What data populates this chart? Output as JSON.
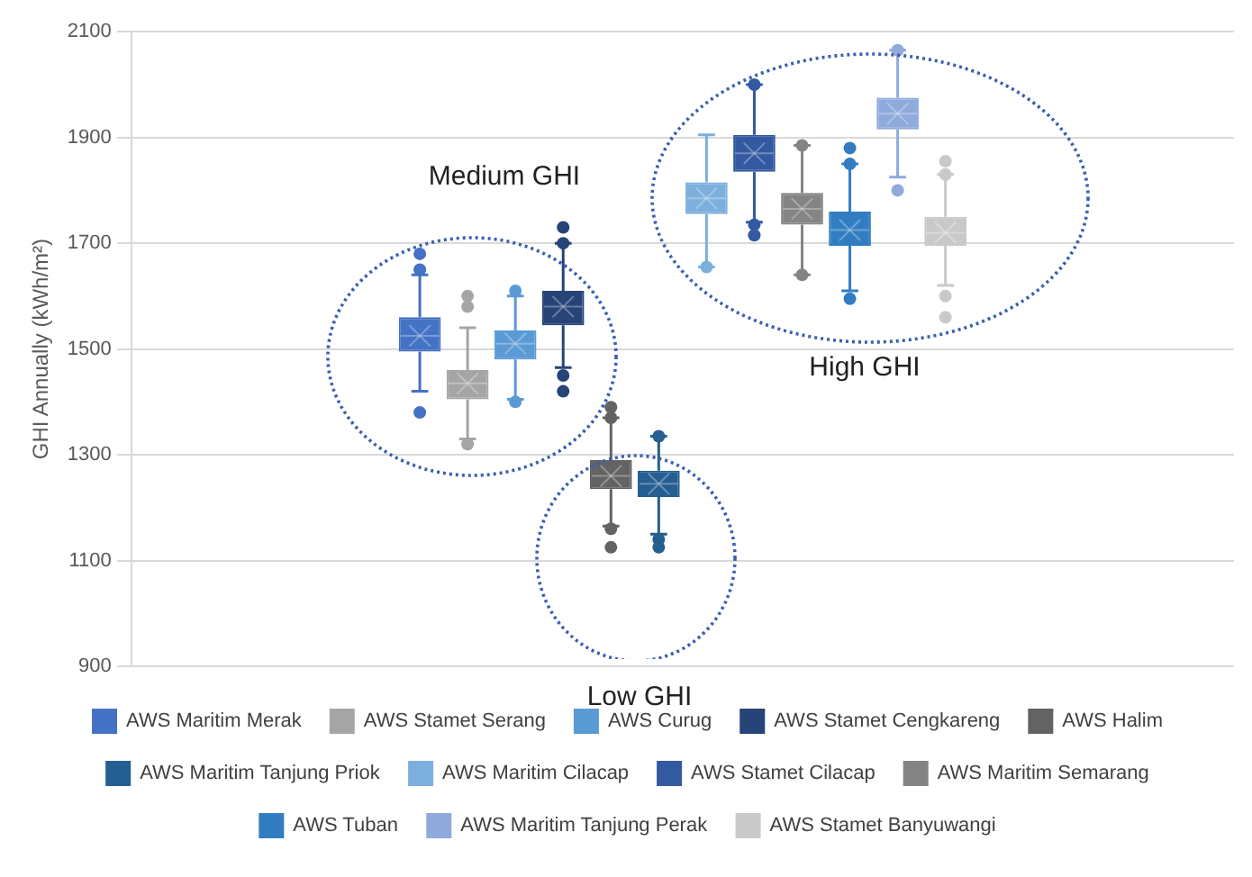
{
  "chart_data": {
    "type": "box",
    "ylabel": "GHI Annually (kWh/m²)",
    "categories": [
      null
    ],
    "ylim": [
      900,
      2100
    ],
    "yticks": [
      900,
      1100,
      1300,
      1500,
      1700,
      1900,
      2100
    ],
    "grid": "y",
    "tick_labels": "y",
    "legend": "bottom",
    "annotations": [
      "Medium GHI",
      "High GHI",
      "Low GHI"
    ],
    "series": [
      {
        "name": "AWS Maritim Merak",
        "color": "#4472c4",
        "boxes": [
          {
            "low": 1420,
            "q1": 1495,
            "median": 1525,
            "q3": 1560,
            "high": 1640,
            "mean": 1525,
            "outliers": [
              1680,
              1650,
              1380
            ]
          }
        ]
      },
      {
        "name": "AWS Stamet Serang",
        "color": "#a5a5a5",
        "boxes": [
          {
            "low": 1330,
            "q1": 1405,
            "median": 1435,
            "q3": 1460,
            "high": 1540,
            "mean": 1435,
            "outliers": [
              1600,
              1580,
              1320
            ]
          }
        ]
      },
      {
        "name": "AWS Curug",
        "color": "#5b9bd5",
        "boxes": [
          {
            "low": 1405,
            "q1": 1480,
            "median": 1510,
            "q3": 1535,
            "high": 1600,
            "mean": 1510,
            "outliers": [
              1610,
              1400
            ]
          }
        ]
      },
      {
        "name": "AWS Stamet Cengkareng",
        "color": "#264478",
        "boxes": [
          {
            "low": 1465,
            "q1": 1545,
            "median": 1580,
            "q3": 1610,
            "high": 1700,
            "mean": 1580,
            "outliers": [
              1730,
              1700,
              1450,
              1420
            ]
          }
        ]
      },
      {
        "name": "AWS Halim",
        "color": "#636363",
        "boxes": [
          {
            "low": 1165,
            "q1": 1235,
            "median": 1260,
            "q3": 1290,
            "high": 1370,
            "mean": 1260,
            "outliers": [
              1390,
              1370,
              1160,
              1125
            ]
          }
        ]
      },
      {
        "name": "AWS Maritim Tanjung Priok",
        "color": "#255e91",
        "boxes": [
          {
            "low": 1150,
            "q1": 1220,
            "median": 1245,
            "q3": 1270,
            "high": 1335,
            "mean": 1245,
            "outliers": [
              1335,
              1140,
              1125
            ]
          }
        ]
      },
      {
        "name": "AWS Maritim Cilacap",
        "color": "#7cafdd",
        "boxes": [
          {
            "low": 1655,
            "q1": 1755,
            "median": 1785,
            "q3": 1815,
            "high": 1905,
            "mean": 1785,
            "outliers": [
              1655
            ]
          }
        ]
      },
      {
        "name": "AWS Stamet Cilacap",
        "color": "#335aa1",
        "boxes": [
          {
            "low": 1740,
            "q1": 1835,
            "median": 1870,
            "q3": 1905,
            "high": 2000,
            "mean": 1870,
            "outliers": [
              2000,
              1735,
              1715
            ]
          }
        ]
      },
      {
        "name": "AWS Maritim Semarang",
        "color": "#848484",
        "boxes": [
          {
            "low": 1640,
            "q1": 1735,
            "median": 1765,
            "q3": 1795,
            "high": 1885,
            "mean": 1765,
            "outliers": [
              1885,
              1640
            ]
          }
        ]
      },
      {
        "name": "AWS Tuban",
        "color": "#327dc2",
        "boxes": [
          {
            "low": 1610,
            "q1": 1695,
            "median": 1725,
            "q3": 1760,
            "high": 1850,
            "mean": 1725,
            "outliers": [
              1880,
              1850,
              1595
            ]
          }
        ]
      },
      {
        "name": "AWS Maritim Tanjung Perak",
        "color": "#8faadc",
        "boxes": [
          {
            "low": 1825,
            "q1": 1915,
            "median": 1945,
            "q3": 1975,
            "high": 2065,
            "mean": 1945,
            "outliers": [
              2065,
              1800
            ]
          }
        ]
      },
      {
        "name": "AWS Stamet Banyuwangi",
        "color": "#c9c9c9",
        "boxes": [
          {
            "low": 1620,
            "q1": 1695,
            "median": 1720,
            "q3": 1750,
            "high": 1830,
            "mean": 1720,
            "outliers": [
              1855,
              1830,
              1600,
              1560
            ]
          }
        ]
      }
    ]
  }
}
